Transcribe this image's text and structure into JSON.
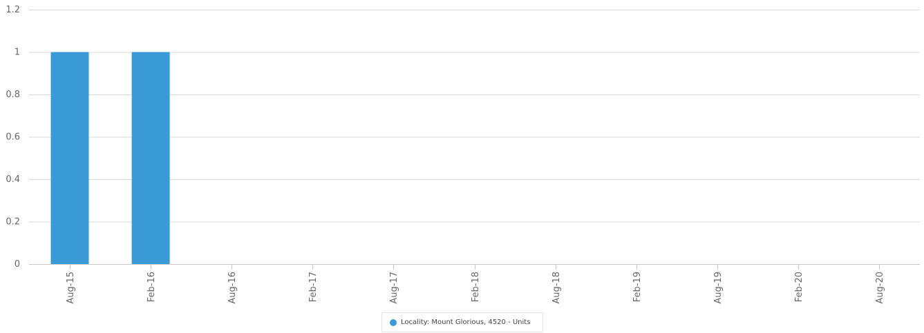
{
  "chart_data": {
    "type": "bar",
    "categories": [
      "Aug-15",
      "Feb-16",
      "Aug-16",
      "Feb-17",
      "Aug-17",
      "Feb-18",
      "Aug-18",
      "Feb-19",
      "Aug-19",
      "Feb-20",
      "Aug-20"
    ],
    "series": [
      {
        "name": "Locality: Mount Glorious, 4520 - Units",
        "values": [
          1,
          1,
          0,
          0,
          0,
          0,
          0,
          0,
          0,
          0,
          0
        ],
        "color": "#3a9ad6"
      }
    ],
    "y_ticks": [
      "0",
      "0.2",
      "0.4",
      "0.6",
      "0.8",
      "1",
      "1.2"
    ],
    "ylim": [
      0,
      1.2
    ],
    "grid": true,
    "legend_position": "bottom-center",
    "title": "",
    "xlabel": "",
    "ylabel": ""
  }
}
